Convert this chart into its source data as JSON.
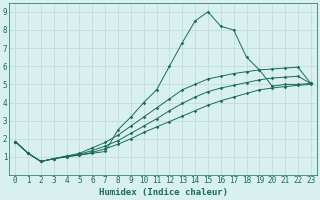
{
  "xlabel": "Humidex (Indice chaleur)",
  "bg_color": "#d8f0f0",
  "grid_color": "#c0d8d4",
  "line_color": "#1a6b5a",
  "xlim": [
    -0.5,
    23.5
  ],
  "ylim": [
    0,
    9.5
  ],
  "xticks": [
    0,
    1,
    2,
    3,
    4,
    5,
    6,
    7,
    8,
    9,
    10,
    11,
    12,
    13,
    14,
    15,
    16,
    17,
    18,
    19,
    20,
    21,
    22,
    23
  ],
  "yticks": [
    1,
    2,
    3,
    4,
    5,
    6,
    7,
    8,
    9
  ],
  "line1_x": [
    0,
    1,
    2,
    3,
    4,
    5,
    6,
    7,
    8,
    9,
    10,
    11,
    12,
    13,
    14,
    15,
    16,
    17,
    18,
    19,
    20,
    21,
    22,
    23
  ],
  "line1_y": [
    1.85,
    1.2,
    0.75,
    0.9,
    1.05,
    1.1,
    1.2,
    1.3,
    2.5,
    3.2,
    4.0,
    4.7,
    6.0,
    7.3,
    8.5,
    9.0,
    8.2,
    8.0,
    6.5,
    5.8,
    4.9,
    5.0,
    5.0,
    5.05
  ],
  "line2_x": [
    0,
    1,
    2,
    3,
    4,
    5,
    6,
    7,
    8,
    9,
    10,
    11,
    12,
    13,
    14,
    15,
    16,
    17,
    18,
    19,
    20,
    21,
    22,
    23
  ],
  "line2_y": [
    1.85,
    1.2,
    0.75,
    0.9,
    1.05,
    1.2,
    1.5,
    1.8,
    2.2,
    2.7,
    3.2,
    3.7,
    4.2,
    4.7,
    5.0,
    5.3,
    5.45,
    5.6,
    5.7,
    5.8,
    5.85,
    5.9,
    5.95,
    5.05
  ],
  "line3_x": [
    0,
    1,
    2,
    3,
    4,
    5,
    6,
    7,
    8,
    9,
    10,
    11,
    12,
    13,
    14,
    15,
    16,
    17,
    18,
    19,
    20,
    21,
    22,
    23
  ],
  "line3_y": [
    1.85,
    1.2,
    0.75,
    0.9,
    1.0,
    1.1,
    1.25,
    1.45,
    1.7,
    2.0,
    2.35,
    2.65,
    2.95,
    3.25,
    3.55,
    3.85,
    4.1,
    4.3,
    4.5,
    4.7,
    4.8,
    4.88,
    4.95,
    5.0
  ],
  "line4_x": [
    0,
    1,
    2,
    3,
    4,
    5,
    6,
    7,
    8,
    9,
    10,
    11,
    12,
    13,
    14,
    15,
    16,
    17,
    18,
    19,
    20,
    21,
    22,
    23
  ],
  "line4_y": [
    1.85,
    1.2,
    0.75,
    0.9,
    1.02,
    1.15,
    1.35,
    1.6,
    1.9,
    2.3,
    2.7,
    3.1,
    3.55,
    3.95,
    4.3,
    4.6,
    4.8,
    4.95,
    5.1,
    5.25,
    5.35,
    5.4,
    5.45,
    5.05
  ]
}
